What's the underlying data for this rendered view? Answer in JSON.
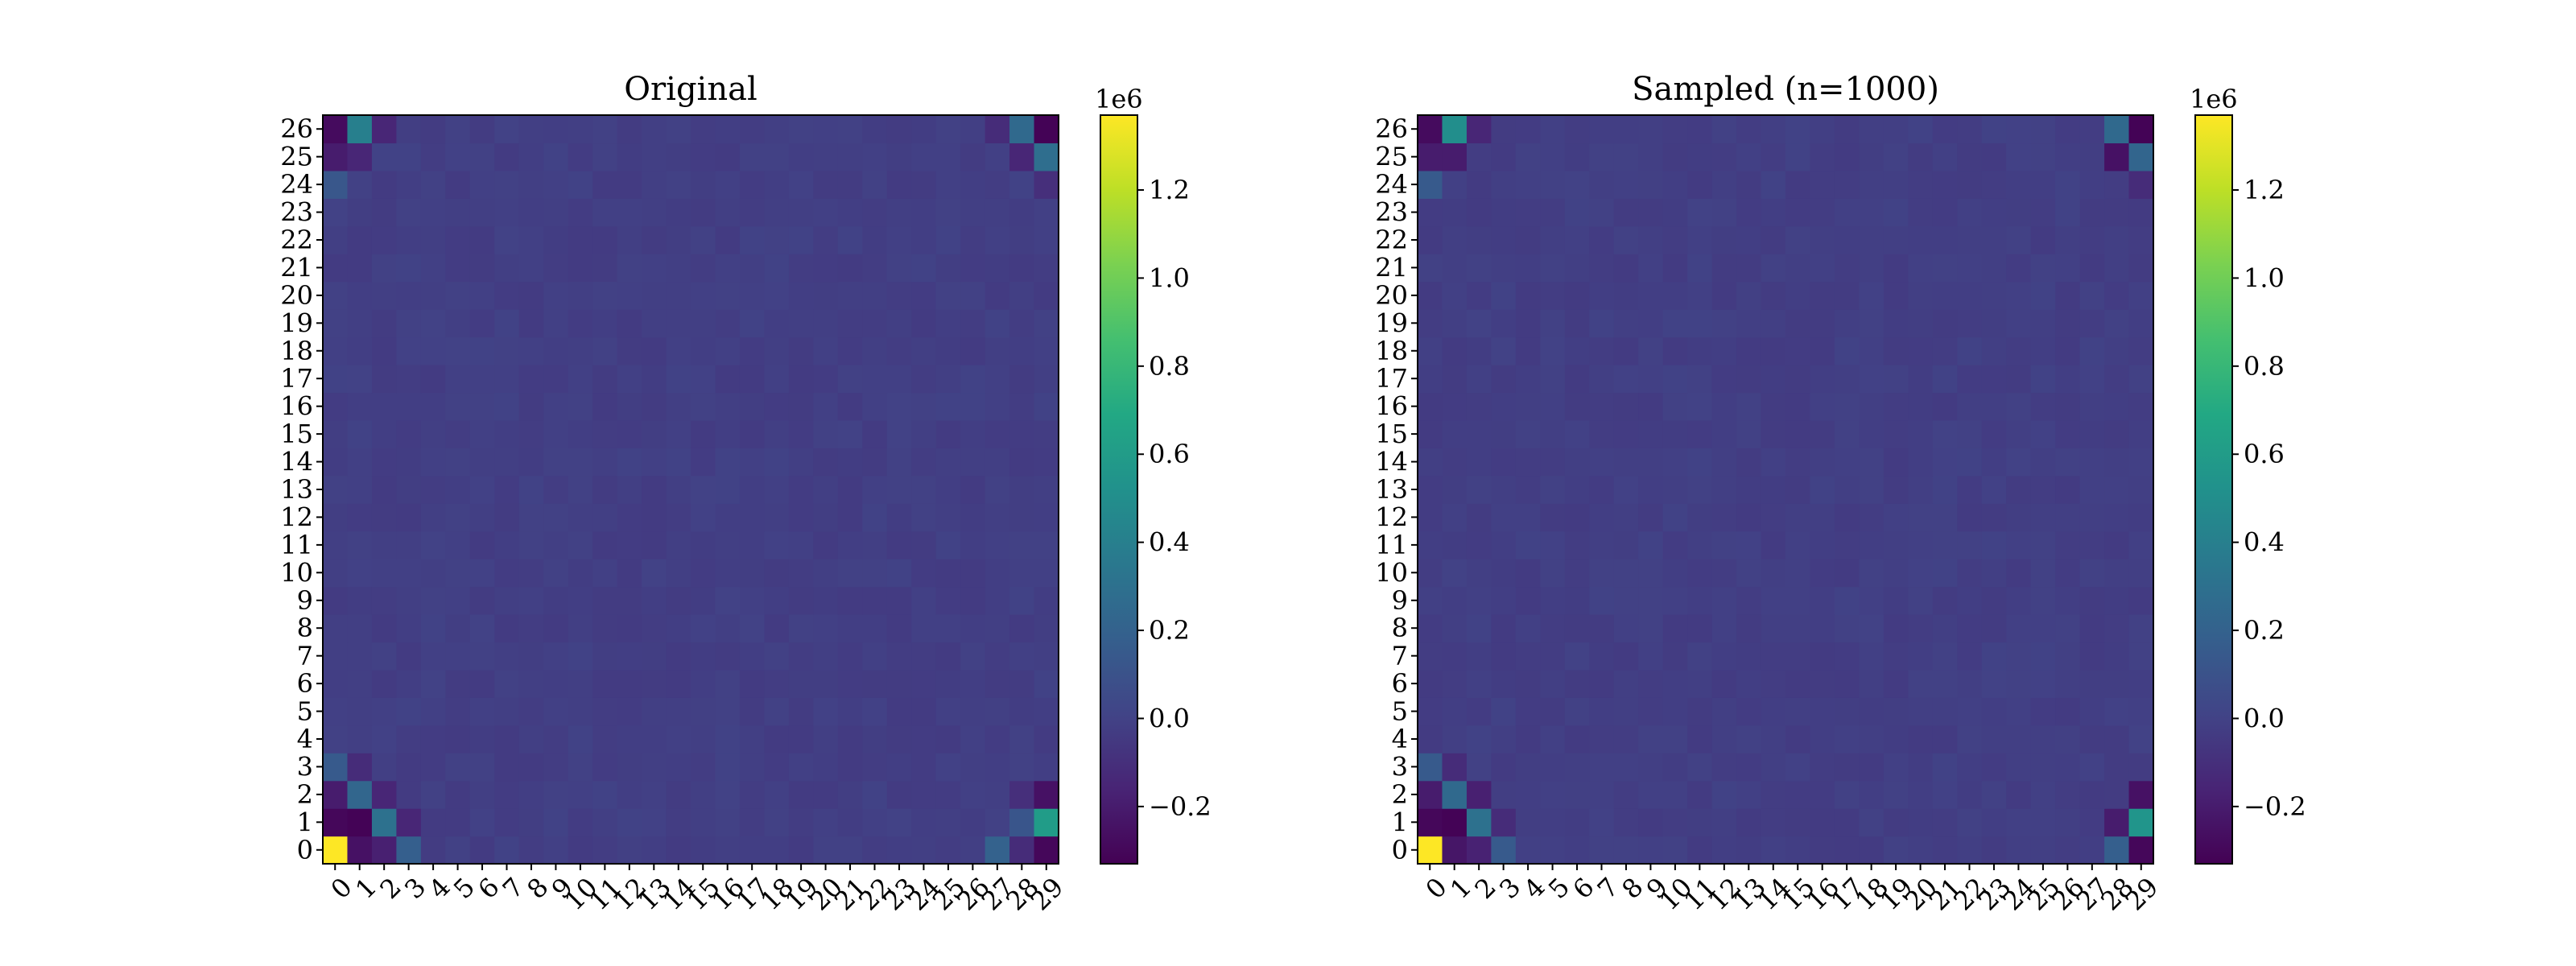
{
  "chart_data": [
    {
      "type": "heatmap",
      "title": "Original",
      "xlabel": "",
      "ylabel": "",
      "x_tick_labels": [
        "0",
        "1",
        "2",
        "3",
        "4",
        "5",
        "6",
        "7",
        "8",
        "9",
        "10",
        "11",
        "12",
        "13",
        "14",
        "15",
        "16",
        "17",
        "18",
        "19",
        "20",
        "21",
        "22",
        "23",
        "24",
        "25",
        "26",
        "27",
        "28",
        "29"
      ],
      "y_tick_labels": [
        "0",
        "1",
        "2",
        "3",
        "4",
        "5",
        "6",
        "7",
        "8",
        "9",
        "10",
        "11",
        "12",
        "13",
        "14",
        "15",
        "16",
        "17",
        "18",
        "19",
        "20",
        "21",
        "22",
        "23",
        "24",
        "25",
        "26"
      ],
      "colormap": "viridis",
      "vmin": -330000,
      "vmax": 1370000,
      "colorbar": {
        "scale_label": "1e6",
        "ticks": [
          -0.2,
          0.0,
          0.2,
          0.4,
          0.6,
          0.8,
          1.0,
          1.2
        ],
        "tick_labels": [
          "−0.2",
          "0.0",
          "0.2",
          "0.4",
          "0.6",
          "0.8",
          "1.0",
          "1.2"
        ]
      },
      "cells": [
        {
          "row": 0,
          "col": 0,
          "value": 1370000
        },
        {
          "row": 0,
          "col": 1,
          "value": -250000
        },
        {
          "row": 0,
          "col": 2,
          "value": -180000
        },
        {
          "row": 0,
          "col": 3,
          "value": 180000
        },
        {
          "row": 1,
          "col": 0,
          "value": -300000
        },
        {
          "row": 1,
          "col": 1,
          "value": -320000
        },
        {
          "row": 1,
          "col": 2,
          "value": 300000
        },
        {
          "row": 1,
          "col": 3,
          "value": -150000
        },
        {
          "row": 2,
          "col": 0,
          "value": -200000
        },
        {
          "row": 2,
          "col": 1,
          "value": 230000
        },
        {
          "row": 2,
          "col": 2,
          "value": -150000
        },
        {
          "row": 3,
          "col": 0,
          "value": 150000
        },
        {
          "row": 3,
          "col": 1,
          "value": -120000
        },
        {
          "row": 0,
          "col": 27,
          "value": 200000
        },
        {
          "row": 0,
          "col": 28,
          "value": -120000
        },
        {
          "row": 0,
          "col": 29,
          "value": -300000
        },
        {
          "row": 1,
          "col": 28,
          "value": 120000
        },
        {
          "row": 1,
          "col": 29,
          "value": 600000
        },
        {
          "row": 2,
          "col": 28,
          "value": -100000
        },
        {
          "row": 2,
          "col": 29,
          "value": -250000
        },
        {
          "row": 26,
          "col": 0,
          "value": -280000
        },
        {
          "row": 26,
          "col": 1,
          "value": 400000
        },
        {
          "row": 26,
          "col": 2,
          "value": -150000
        },
        {
          "row": 25,
          "col": 0,
          "value": -200000
        },
        {
          "row": 25,
          "col": 1,
          "value": -150000
        },
        {
          "row": 24,
          "col": 0,
          "value": 130000
        },
        {
          "row": 26,
          "col": 28,
          "value": 250000
        },
        {
          "row": 26,
          "col": 29,
          "value": -320000
        },
        {
          "row": 26,
          "col": 27,
          "value": -120000
        },
        {
          "row": 25,
          "col": 28,
          "value": -150000
        },
        {
          "row": 25,
          "col": 29,
          "value": 280000
        },
        {
          "row": 24,
          "col": 29,
          "value": -100000
        }
      ]
    },
    {
      "type": "heatmap",
      "title": "Sampled (n=1000)",
      "xlabel": "",
      "ylabel": "",
      "x_tick_labels": [
        "0",
        "1",
        "2",
        "3",
        "4",
        "5",
        "6",
        "7",
        "8",
        "9",
        "10",
        "11",
        "12",
        "13",
        "14",
        "15",
        "16",
        "17",
        "18",
        "19",
        "20",
        "21",
        "22",
        "23",
        "24",
        "25",
        "26",
        "27",
        "28",
        "29"
      ],
      "y_tick_labels": [
        "0",
        "1",
        "2",
        "3",
        "4",
        "5",
        "6",
        "7",
        "8",
        "9",
        "10",
        "11",
        "12",
        "13",
        "14",
        "15",
        "16",
        "17",
        "18",
        "19",
        "20",
        "21",
        "22",
        "23",
        "24",
        "25",
        "26"
      ],
      "colormap": "viridis",
      "vmin": -330000,
      "vmax": 1370000,
      "colorbar": {
        "scale_label": "1e6",
        "ticks": [
          -0.2,
          0.0,
          0.2,
          0.4,
          0.6,
          0.8,
          1.0,
          1.2
        ],
        "tick_labels": [
          "−0.2",
          "0.0",
          "0.2",
          "0.4",
          "0.6",
          "0.8",
          "1.0",
          "1.2"
        ]
      },
      "cells": [
        {
          "row": 0,
          "col": 0,
          "value": 1370000
        },
        {
          "row": 0,
          "col": 1,
          "value": -230000
        },
        {
          "row": 0,
          "col": 2,
          "value": -170000
        },
        {
          "row": 0,
          "col": 3,
          "value": 150000
        },
        {
          "row": 1,
          "col": 0,
          "value": -300000
        },
        {
          "row": 1,
          "col": 1,
          "value": -320000
        },
        {
          "row": 1,
          "col": 2,
          "value": 300000
        },
        {
          "row": 1,
          "col": 3,
          "value": -120000
        },
        {
          "row": 2,
          "col": 0,
          "value": -200000
        },
        {
          "row": 2,
          "col": 1,
          "value": 250000
        },
        {
          "row": 2,
          "col": 2,
          "value": -180000
        },
        {
          "row": 3,
          "col": 0,
          "value": 150000
        },
        {
          "row": 3,
          "col": 1,
          "value": -120000
        },
        {
          "row": 0,
          "col": 28,
          "value": 180000
        },
        {
          "row": 0,
          "col": 29,
          "value": -300000
        },
        {
          "row": 1,
          "col": 28,
          "value": -200000
        },
        {
          "row": 1,
          "col": 29,
          "value": 550000
        },
        {
          "row": 2,
          "col": 29,
          "value": -250000
        },
        {
          "row": 26,
          "col": 0,
          "value": -280000
        },
        {
          "row": 26,
          "col": 1,
          "value": 500000
        },
        {
          "row": 26,
          "col": 2,
          "value": -150000
        },
        {
          "row": 25,
          "col": 0,
          "value": -200000
        },
        {
          "row": 25,
          "col": 1,
          "value": -200000
        },
        {
          "row": 24,
          "col": 0,
          "value": 150000
        },
        {
          "row": 26,
          "col": 28,
          "value": 250000
        },
        {
          "row": 26,
          "col": 29,
          "value": -320000
        },
        {
          "row": 25,
          "col": 28,
          "value": -250000
        },
        {
          "row": 25,
          "col": 29,
          "value": 220000
        },
        {
          "row": 24,
          "col": 29,
          "value": -120000
        }
      ]
    }
  ]
}
